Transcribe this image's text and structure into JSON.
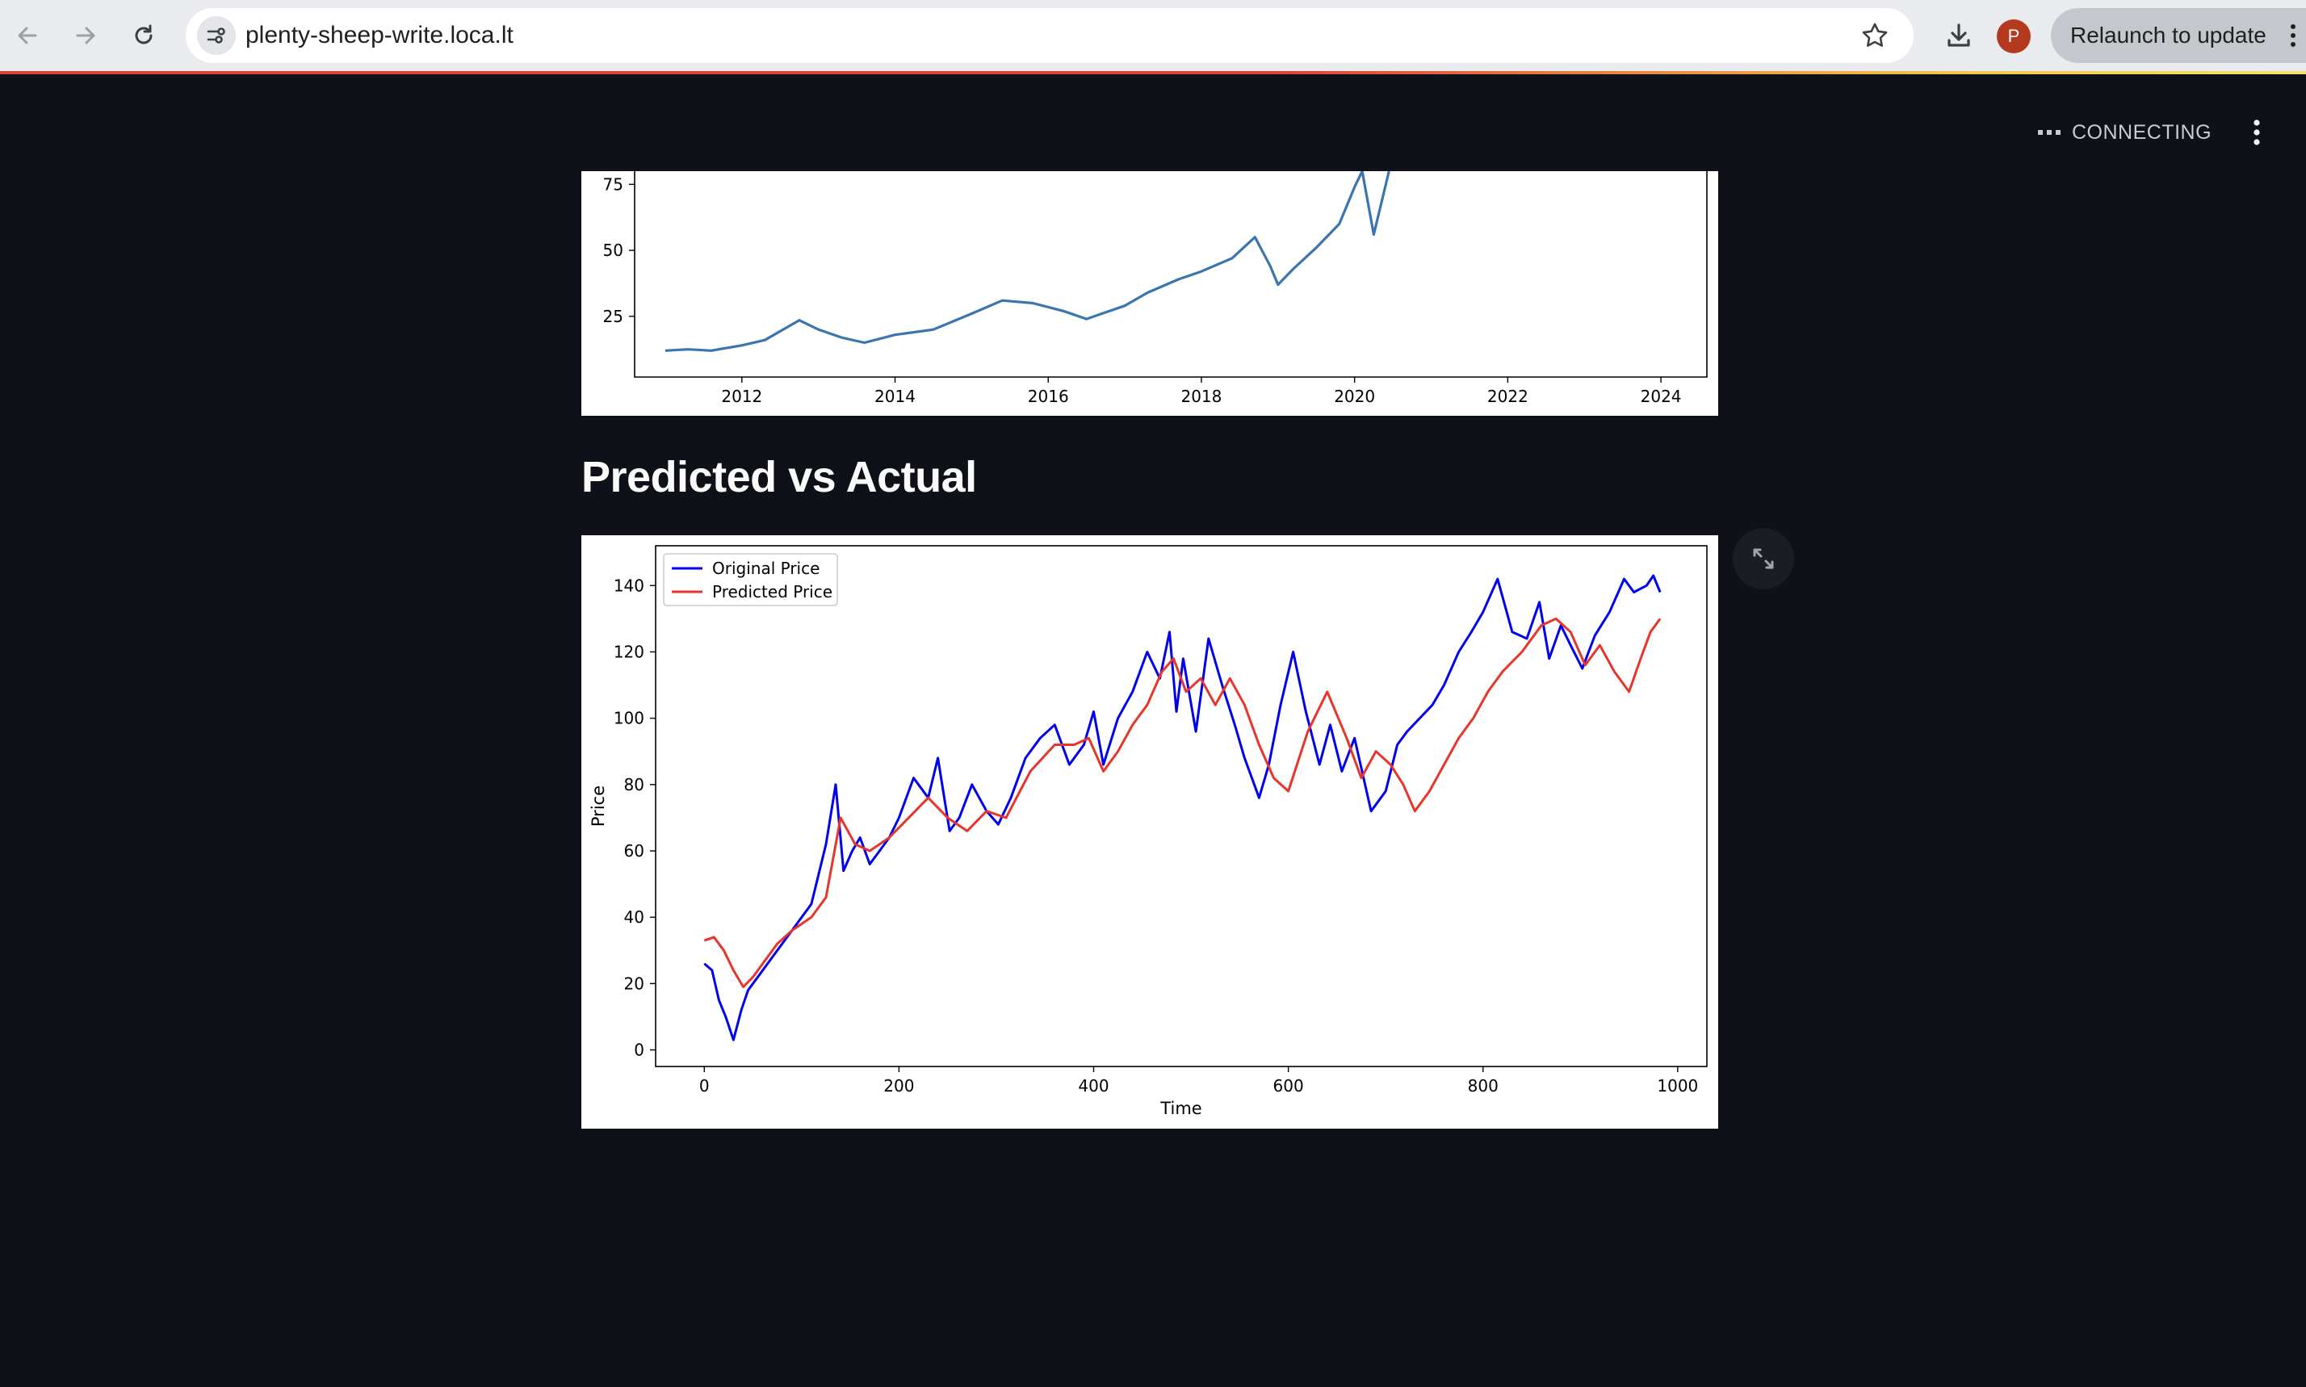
{
  "browser": {
    "url": "plenty-sheep-write.loca.lt",
    "profile_initial": "P",
    "relaunch_label": "Relaunch to update"
  },
  "app": {
    "status": "CONNECTING",
    "heading": "Predicted vs Actual"
  },
  "chart_data": [
    {
      "type": "line",
      "title": "",
      "xlabel": "",
      "ylabel": "",
      "x_ticks": [
        "2012",
        "2014",
        "2016",
        "2018",
        "2020",
        "2022",
        "2024"
      ],
      "y_ticks": [
        "25",
        "50",
        "75"
      ],
      "xlim": [
        2010.6,
        2024.6
      ],
      "ylim": [
        2,
        80
      ],
      "grid": false,
      "note_visible": "cropped at top; line continues above view",
      "series": [
        {
          "color": "#3a75b0",
          "x": [
            2011.0,
            2011.3,
            2011.6,
            2012.0,
            2012.3,
            2012.6,
            2012.75,
            2013.0,
            2013.3,
            2013.6,
            2014.0,
            2014.5,
            2015.0,
            2015.4,
            2015.8,
            2016.2,
            2016.5,
            2016.7,
            2017.0,
            2017.3,
            2017.7,
            2018.0,
            2018.4,
            2018.7,
            2018.9,
            2019.0,
            2019.2,
            2019.5,
            2019.8,
            2020.0,
            2020.1,
            2020.25,
            2020.45
          ],
          "y": [
            12,
            12.5,
            12,
            14,
            16,
            21,
            23.5,
            20,
            17,
            15,
            18,
            20,
            26,
            31,
            30,
            27,
            24,
            26,
            29,
            34,
            39,
            42,
            47,
            55,
            44,
            37,
            43,
            51,
            60,
            74,
            80,
            56,
            80
          ]
        }
      ]
    },
    {
      "type": "line",
      "title": "",
      "xlabel": "Time",
      "ylabel": "Price",
      "x_ticks": [
        "0",
        "200",
        "400",
        "600",
        "800",
        "1000"
      ],
      "y_ticks": [
        "0",
        "20",
        "40",
        "60",
        "80",
        "100",
        "120",
        "140"
      ],
      "xlim": [
        -50,
        1030
      ],
      "ylim": [
        -5,
        152
      ],
      "grid": false,
      "legend_position": "top-left",
      "series": [
        {
          "name": "Original Price",
          "color": "#0000ee",
          "x": [
            0,
            8,
            15,
            22,
            30,
            38,
            45,
            55,
            70,
            90,
            110,
            125,
            135,
            143,
            152,
            160,
            170,
            180,
            190,
            200,
            215,
            230,
            240,
            252,
            262,
            275,
            290,
            302,
            315,
            330,
            345,
            360,
            375,
            390,
            400,
            410,
            425,
            440,
            455,
            468,
            478,
            485,
            492,
            505,
            518,
            532,
            545,
            555,
            570,
            580,
            592,
            605,
            618,
            632,
            643,
            655,
            668,
            685,
            700,
            712,
            722,
            735,
            748,
            760,
            775,
            788,
            800,
            815,
            830,
            845,
            858,
            868,
            880,
            890,
            902,
            915,
            930,
            945,
            955,
            968,
            975,
            982
          ],
          "y": [
            26,
            24,
            15,
            10,
            3,
            12,
            18,
            22,
            28,
            36,
            44,
            62,
            80,
            54,
            60,
            64,
            56,
            60,
            64,
            70,
            82,
            76,
            88,
            66,
            70,
            80,
            72,
            68,
            76,
            88,
            94,
            98,
            86,
            92,
            102,
            86,
            100,
            108,
            120,
            112,
            126,
            102,
            118,
            96,
            124,
            110,
            98,
            88,
            76,
            86,
            104,
            120,
            102,
            86,
            98,
            84,
            94,
            72,
            78,
            92,
            96,
            100,
            104,
            110,
            120,
            126,
            132,
            142,
            126,
            124,
            135,
            118,
            128,
            122,
            115,
            125,
            132,
            142,
            138,
            140,
            143,
            138
          ]
        },
        {
          "name": "Predicted Price",
          "color": "#e8352b",
          "x": [
            0,
            10,
            20,
            30,
            40,
            50,
            60,
            75,
            90,
            110,
            125,
            140,
            155,
            170,
            190,
            210,
            230,
            250,
            270,
            290,
            310,
            335,
            360,
            380,
            395,
            410,
            425,
            440,
            455,
            470,
            482,
            495,
            510,
            525,
            540,
            555,
            570,
            585,
            600,
            620,
            640,
            660,
            675,
            690,
            705,
            718,
            730,
            745,
            760,
            775,
            790,
            805,
            820,
            840,
            860,
            875,
            890,
            905,
            920,
            935,
            950,
            962,
            972,
            982
          ],
          "y": [
            33,
            34,
            30,
            24,
            19,
            22,
            26,
            32,
            36,
            40,
            46,
            70,
            62,
            60,
            64,
            70,
            76,
            70,
            66,
            72,
            70,
            84,
            92,
            92,
            94,
            84,
            90,
            98,
            104,
            114,
            118,
            108,
            112,
            104,
            112,
            104,
            92,
            82,
            78,
            96,
            108,
            94,
            82,
            90,
            86,
            80,
            72,
            78,
            86,
            94,
            100,
            108,
            114,
            120,
            128,
            130,
            126,
            116,
            122,
            114,
            108,
            118,
            126,
            130
          ]
        }
      ]
    }
  ]
}
